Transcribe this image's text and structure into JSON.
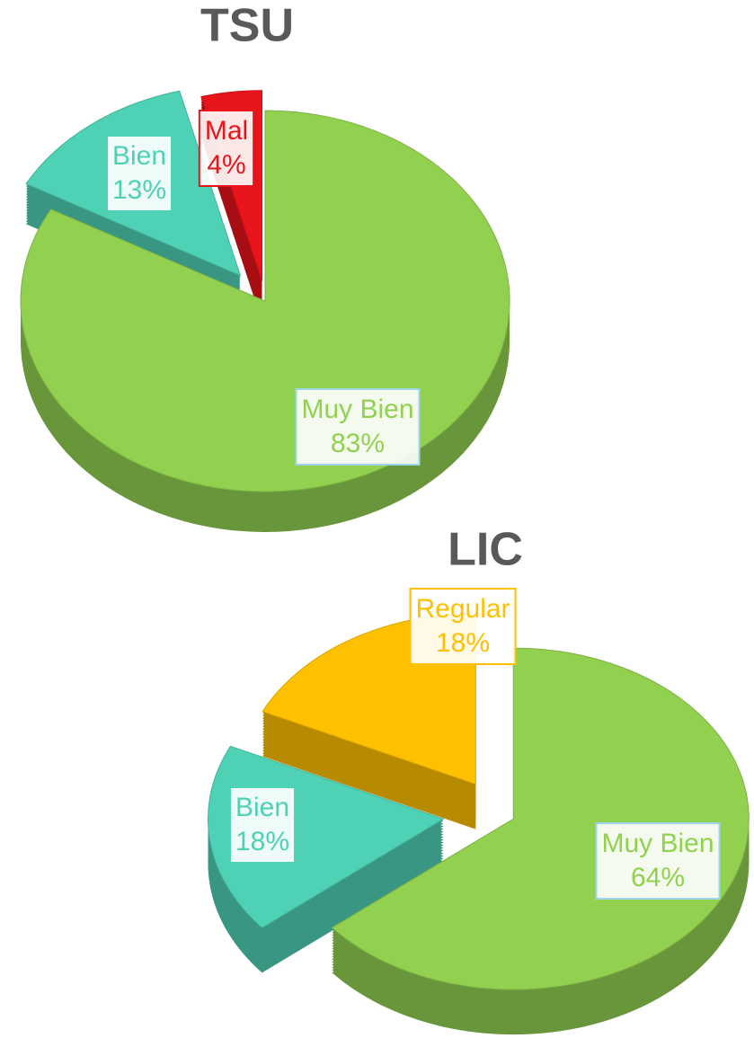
{
  "chart_data": [
    {
      "type": "pie",
      "title": "TSU",
      "categories": [
        "Muy Bien",
        "Bien",
        "Mal"
      ],
      "values": [
        83,
        13,
        4
      ],
      "value_labels": [
        "83%",
        "13%",
        "4%"
      ],
      "colors": [
        "#92d050",
        "#4fd1b5",
        "#e8141b"
      ]
    },
    {
      "type": "pie",
      "title": "LIC",
      "categories": [
        "Muy Bien",
        "Bien",
        "Regular"
      ],
      "values": [
        64,
        18,
        18
      ],
      "value_labels": [
        "64%",
        "18%",
        "18%"
      ],
      "colors": [
        "#92d050",
        "#4fd1b5",
        "#ffc000"
      ]
    }
  ]
}
